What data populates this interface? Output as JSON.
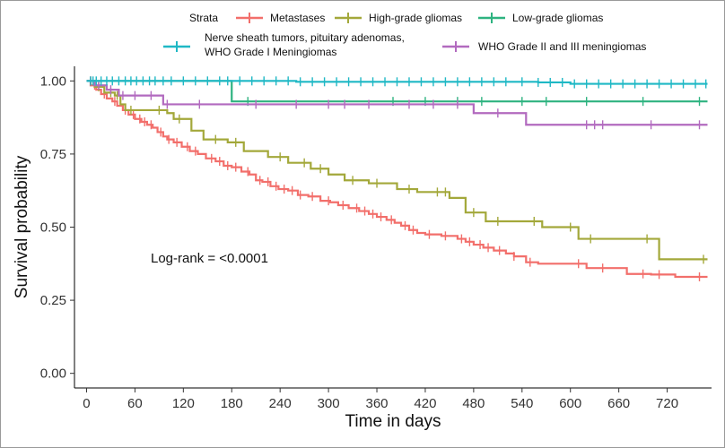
{
  "chart_data": {
    "type": "line",
    "subtype": "kaplan-meier",
    "xlabel": "Time in days",
    "ylabel": "Survival probability",
    "xlim": [
      -15,
      775
    ],
    "ylim": [
      -0.05,
      1.05
    ],
    "xticks": [
      0,
      60,
      120,
      180,
      240,
      300,
      360,
      420,
      480,
      540,
      600,
      660,
      720
    ],
    "yticks": [
      0.0,
      0.25,
      0.5,
      0.75,
      1.0
    ],
    "ytick_labels": [
      "0.00",
      "0.25",
      "0.50",
      "0.75",
      "1.00"
    ],
    "grid": false,
    "legend": {
      "title": "Strata",
      "placement": "top",
      "entries_line1": [
        "Metastases",
        "High-grade gliomas",
        "Low-grade gliomas"
      ],
      "entry4_lines": [
        "Nerve sheath tumors, pituitary adenomas,",
        "WHO Grade I Meningiomas"
      ],
      "entry5": "WHO Grade II and III meningiomas"
    },
    "annotation": "Log-rank = <0.0001",
    "series": [
      {
        "name": "Metastases",
        "color": "#F26F6B",
        "steps": [
          [
            0,
            1.0
          ],
          [
            5,
            0.985
          ],
          [
            12,
            0.97
          ],
          [
            18,
            0.955
          ],
          [
            25,
            0.94
          ],
          [
            32,
            0.93
          ],
          [
            38,
            0.915
          ],
          [
            45,
            0.9
          ],
          [
            52,
            0.885
          ],
          [
            60,
            0.87
          ],
          [
            68,
            0.86
          ],
          [
            75,
            0.85
          ],
          [
            82,
            0.84
          ],
          [
            88,
            0.825
          ],
          [
            95,
            0.81
          ],
          [
            100,
            0.8
          ],
          [
            108,
            0.79
          ],
          [
            118,
            0.775
          ],
          [
            128,
            0.76
          ],
          [
            138,
            0.75
          ],
          [
            148,
            0.735
          ],
          [
            160,
            0.725
          ],
          [
            170,
            0.71
          ],
          [
            180,
            0.705
          ],
          [
            192,
            0.69
          ],
          [
            202,
            0.68
          ],
          [
            210,
            0.66
          ],
          [
            218,
            0.655
          ],
          [
            228,
            0.64
          ],
          [
            238,
            0.63
          ],
          [
            250,
            0.625
          ],
          [
            262,
            0.61
          ],
          [
            275,
            0.605
          ],
          [
            290,
            0.59
          ],
          [
            302,
            0.585
          ],
          [
            312,
            0.575
          ],
          [
            325,
            0.565
          ],
          [
            338,
            0.555
          ],
          [
            350,
            0.545
          ],
          [
            360,
            0.535
          ],
          [
            372,
            0.525
          ],
          [
            382,
            0.515
          ],
          [
            390,
            0.505
          ],
          [
            400,
            0.49
          ],
          [
            410,
            0.48
          ],
          [
            420,
            0.475
          ],
          [
            440,
            0.47
          ],
          [
            460,
            0.46
          ],
          [
            470,
            0.45
          ],
          [
            480,
            0.44
          ],
          [
            492,
            0.43
          ],
          [
            505,
            0.42
          ],
          [
            520,
            0.41
          ],
          [
            530,
            0.4
          ],
          [
            545,
            0.38
          ],
          [
            560,
            0.375
          ],
          [
            620,
            0.36
          ],
          [
            670,
            0.34
          ],
          [
            700,
            0.338
          ],
          [
            730,
            0.33
          ],
          [
            770,
            0.33
          ]
        ],
        "censor_x": [
          10,
          22,
          35,
          48,
          58,
          66,
          72,
          80,
          92,
          102,
          112,
          125,
          135,
          155,
          165,
          175,
          185,
          200,
          215,
          225,
          235,
          245,
          255,
          265,
          280,
          300,
          318,
          335,
          345,
          355,
          365,
          378,
          395,
          405,
          425,
          445,
          465,
          475,
          488,
          498,
          512,
          530,
          550,
          610,
          640,
          690,
          710,
          760
        ]
      },
      {
        "name": "High-grade gliomas",
        "color": "#A3A83A",
        "steps": [
          [
            0,
            1.0
          ],
          [
            10,
            0.98
          ],
          [
            22,
            0.96
          ],
          [
            35,
            0.95
          ],
          [
            42,
            0.92
          ],
          [
            48,
            0.9
          ],
          [
            100,
            0.89
          ],
          [
            108,
            0.87
          ],
          [
            130,
            0.83
          ],
          [
            145,
            0.8
          ],
          [
            175,
            0.79
          ],
          [
            195,
            0.76
          ],
          [
            225,
            0.74
          ],
          [
            250,
            0.72
          ],
          [
            278,
            0.7
          ],
          [
            300,
            0.68
          ],
          [
            320,
            0.66
          ],
          [
            350,
            0.65
          ],
          [
            385,
            0.63
          ],
          [
            410,
            0.62
          ],
          [
            430,
            0.62
          ],
          [
            450,
            0.6
          ],
          [
            470,
            0.55
          ],
          [
            495,
            0.52
          ],
          [
            540,
            0.52
          ],
          [
            565,
            0.5
          ],
          [
            590,
            0.5
          ],
          [
            610,
            0.46
          ],
          [
            670,
            0.46
          ],
          [
            700,
            0.46
          ],
          [
            710,
            0.39
          ],
          [
            770,
            0.39
          ]
        ],
        "censor_x": [
          5,
          15,
          30,
          38,
          55,
          90,
          115,
          160,
          185,
          240,
          270,
          290,
          330,
          360,
          400,
          435,
          445,
          480,
          510,
          555,
          600,
          625,
          695,
          765
        ]
      },
      {
        "name": "Low-grade gliomas",
        "color": "#2EB380",
        "steps": [
          [
            0,
            1.0
          ],
          [
            180,
            1.0
          ],
          [
            180,
            0.93
          ],
          [
            770,
            0.93
          ]
        ],
        "censor_x": [
          200,
          380,
          420,
          460,
          490,
          540,
          570,
          620,
          690,
          760
        ]
      },
      {
        "name": "Nerve sheath tumors, pituitary adenomas, WHO Grade I Meningiomas",
        "color": "#1FB8C5",
        "steps": [
          [
            0,
            1.0
          ],
          [
            200,
            1.0
          ],
          [
            260,
            0.997
          ],
          [
            560,
            0.995
          ],
          [
            600,
            0.99
          ],
          [
            770,
            0.99
          ]
        ],
        "censor_x": [
          5,
          8,
          12,
          18,
          25,
          32,
          40,
          48,
          55,
          62,
          70,
          78,
          85,
          95,
          105,
          120,
          135,
          150,
          165,
          175,
          190,
          205,
          220,
          235,
          250,
          265,
          280,
          295,
          310,
          325,
          340,
          355,
          370,
          385,
          400,
          415,
          430,
          445,
          460,
          475,
          490,
          505,
          520,
          540,
          560,
          575,
          590,
          605,
          620,
          635,
          650,
          665,
          680,
          695,
          710,
          725,
          740,
          755,
          768
        ]
      },
      {
        "name": "WHO Grade II and III meningiomas",
        "color": "#B26ABF",
        "steps": [
          [
            0,
            1.0
          ],
          [
            10,
            0.985
          ],
          [
            25,
            0.97
          ],
          [
            40,
            0.95
          ],
          [
            85,
            0.95
          ],
          [
            95,
            0.92
          ],
          [
            180,
            0.92
          ],
          [
            420,
            0.92
          ],
          [
            480,
            0.92
          ],
          [
            480,
            0.89
          ],
          [
            540,
            0.89
          ],
          [
            545,
            0.85
          ],
          [
            770,
            0.85
          ]
        ],
        "censor_x": [
          5,
          15,
          30,
          45,
          60,
          80,
          100,
          140,
          210,
          260,
          300,
          320,
          350,
          400,
          430,
          460,
          510,
          620,
          630,
          640,
          700,
          760
        ]
      }
    ]
  }
}
